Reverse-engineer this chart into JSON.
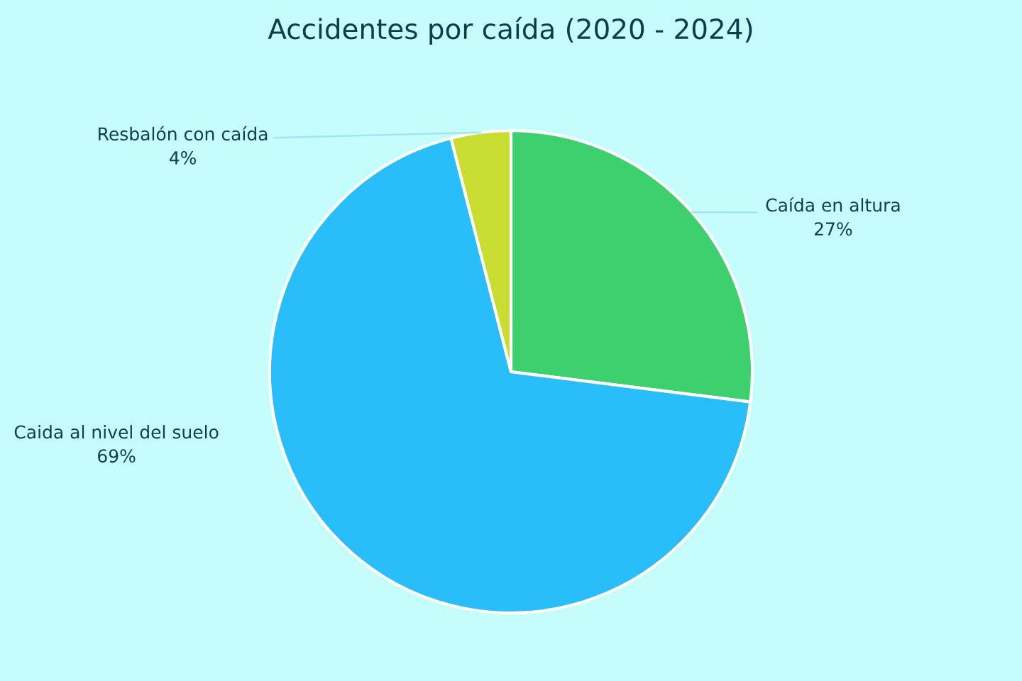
{
  "chart_data": {
    "type": "pie",
    "title": "Accidentes por caída (2020 - 2024)",
    "categories": [
      "Caída en altura",
      "Caida al nivel del suelo",
      "Resbalón con caída"
    ],
    "values": [
      27,
      69,
      4
    ],
    "colors": [
      "#3ecf6e",
      "#29bdfa",
      "#c8dc32"
    ],
    "value_labels": [
      "27%",
      "69%",
      "4%"
    ],
    "legend": false
  }
}
